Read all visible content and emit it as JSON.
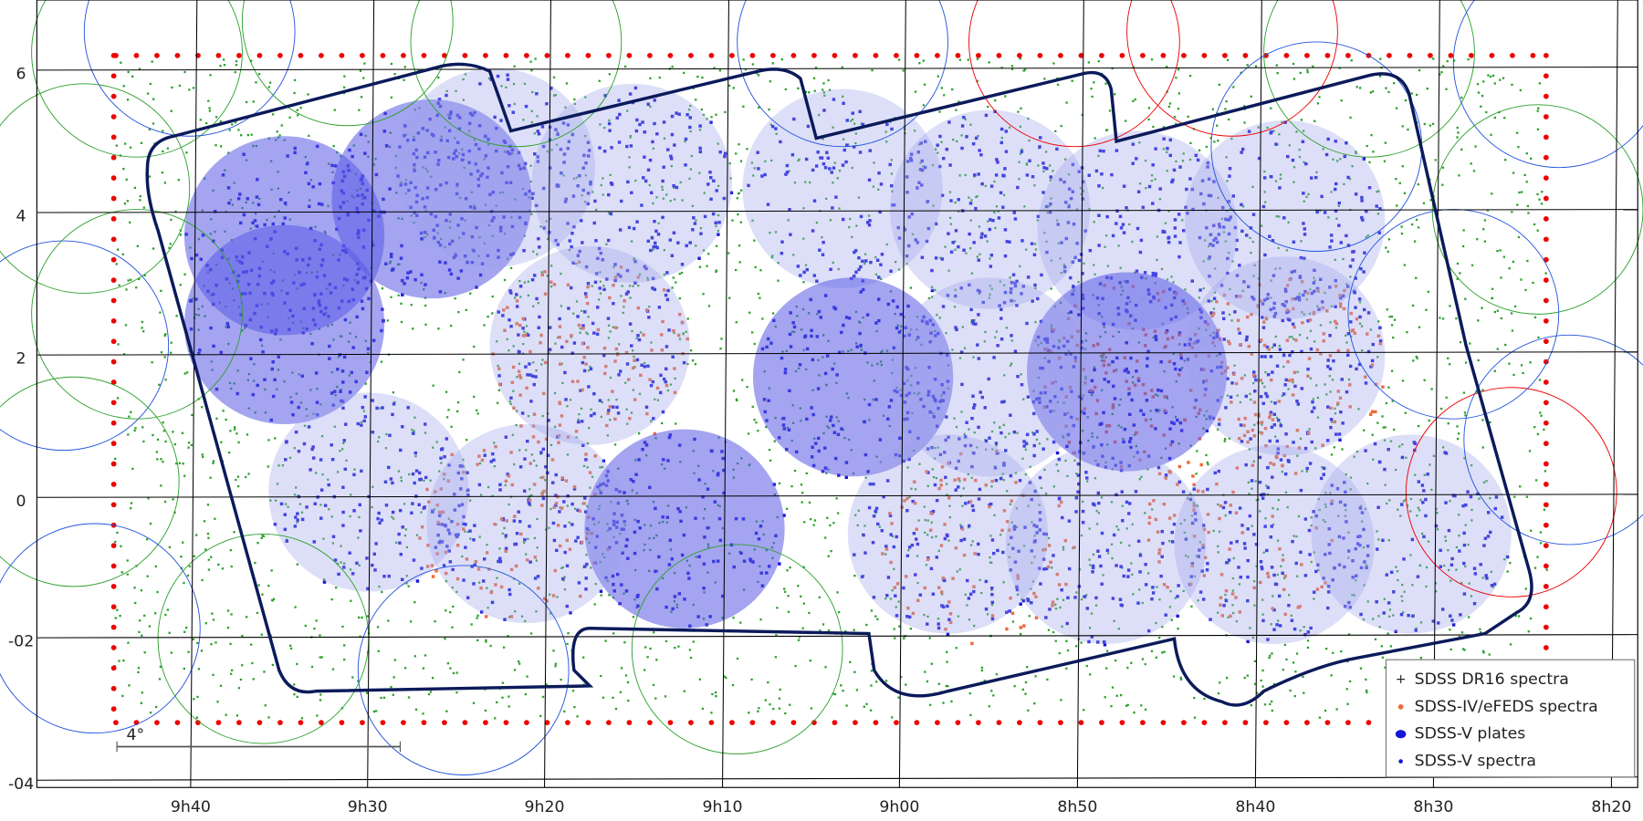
{
  "axes": {
    "x_labels": [
      "9h40",
      "9h30",
      "9h20",
      "9h10",
      "9h00",
      "8h50",
      "8h40",
      "8h30",
      "8h20"
    ],
    "y_labels": [
      "6",
      "4",
      "2",
      "0",
      "-02",
      "-04"
    ]
  },
  "scale_bar": {
    "label": "4°"
  },
  "legend": {
    "items": [
      "SDSS DR16 spectra",
      "SDSS-IV/eFEDS spectra",
      "SDSS-V plates",
      "SDSS-V spectra"
    ]
  }
}
